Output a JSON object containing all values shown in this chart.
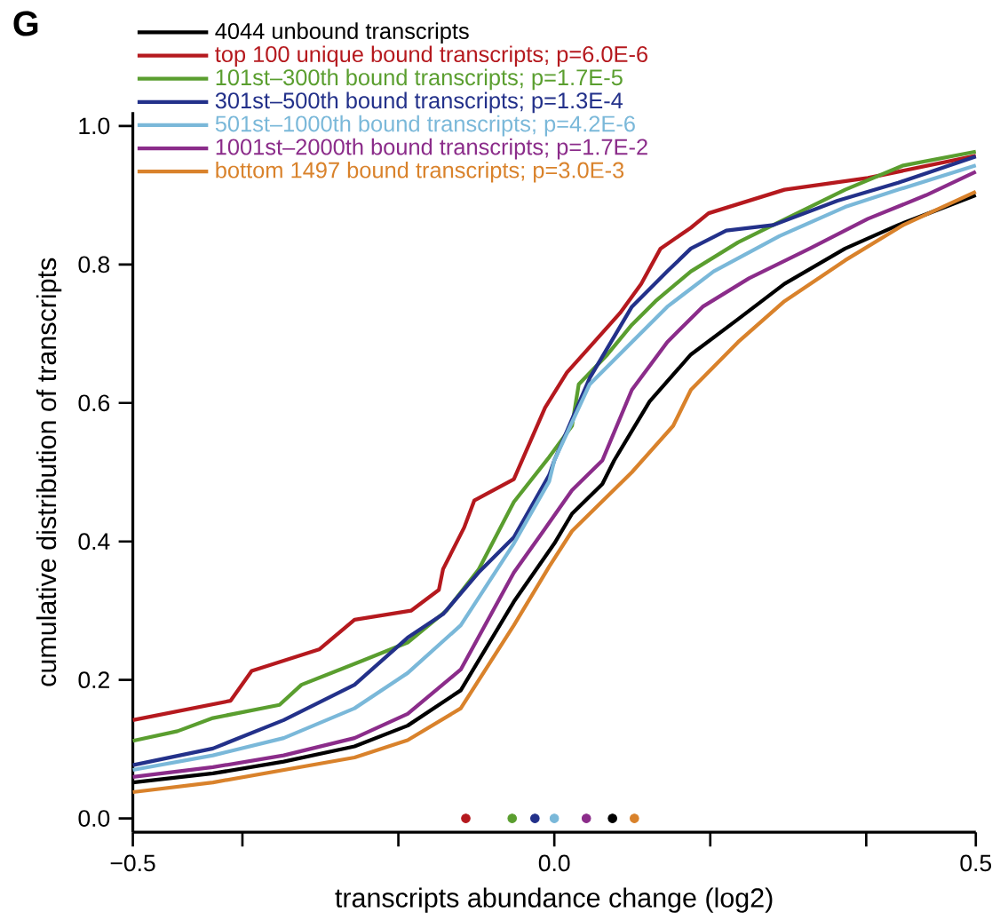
{
  "chart_data": {
    "type": "line",
    "xlabel": "transcripts abundance change (log2)",
    "ylabel": "cumulative distribution of transcripts",
    "annotations": [
      "G"
    ],
    "xlim": [
      -0.5,
      0.5
    ],
    "ylim": [
      -0.02,
      1.02
    ],
    "xticks": [
      {
        "value": -0.5,
        "label": "−0.5"
      },
      {
        "value": -0.37,
        "label": null
      },
      {
        "value": -0.185,
        "label": null
      },
      {
        "value": 0,
        "label": "0.0"
      },
      {
        "value": 0.185,
        "label": null
      },
      {
        "value": 0.37,
        "label": null
      },
      {
        "value": 0.5,
        "label": "0.5"
      }
    ],
    "yticks": [
      {
        "value": 0,
        "label": "0.0"
      },
      {
        "value": 0.2,
        "label": "0.2"
      },
      {
        "value": 0.4,
        "label": "0.4"
      },
      {
        "value": 0.6,
        "label": "0.6"
      },
      {
        "value": 0.8,
        "label": "0.8"
      },
      {
        "value": 1.0,
        "label": "1.0"
      }
    ],
    "legend": "top left",
    "series": [
      {
        "name": "4044 unbound transcripts",
        "color": "#000000",
        "x": [
          -0.5,
          -0.405,
          -0.321,
          -0.237,
          -0.174,
          -0.111,
          -0.048,
          0.0,
          0.021,
          0.057,
          0.071,
          0.113,
          0.162,
          0.218,
          0.273,
          0.345,
          0.408,
          0.5
        ],
        "values": [
          0.052,
          0.065,
          0.082,
          0.104,
          0.134,
          0.185,
          0.313,
          0.397,
          0.44,
          0.483,
          0.517,
          0.602,
          0.67,
          0.721,
          0.772,
          0.823,
          0.857,
          0.9
        ]
      },
      {
        "name": "top 100 unique bound transcripts; p=6.0E-6",
        "color": "#b5191e",
        "x": [
          -0.5,
          -0.384,
          -0.359,
          -0.279,
          -0.237,
          -0.17,
          -0.137,
          -0.132,
          -0.107,
          -0.095,
          -0.048,
          -0.011,
          0.015,
          0.04,
          0.078,
          0.103,
          0.126,
          0.162,
          0.183,
          0.273,
          0.372,
          0.5
        ],
        "values": [
          0.142,
          0.17,
          0.213,
          0.244,
          0.287,
          0.3,
          0.33,
          0.36,
          0.42,
          0.459,
          0.49,
          0.593,
          0.644,
          0.678,
          0.73,
          0.772,
          0.823,
          0.853,
          0.874,
          0.908,
          0.925,
          0.957
        ]
      },
      {
        "name": "101st–300th bound transcripts; p=1.7E-5",
        "color": "#5a9e2f",
        "x": [
          -0.5,
          -0.447,
          -0.405,
          -0.326,
          -0.3,
          -0.227,
          -0.174,
          -0.128,
          -0.09,
          -0.048,
          -0.006,
          0.021,
          0.029,
          0.063,
          0.092,
          0.12,
          0.162,
          0.218,
          0.288,
          0.345,
          0.414,
          0.5
        ],
        "values": [
          0.112,
          0.126,
          0.145,
          0.164,
          0.193,
          0.228,
          0.254,
          0.3,
          0.359,
          0.457,
          0.522,
          0.567,
          0.627,
          0.67,
          0.713,
          0.747,
          0.79,
          0.832,
          0.874,
          0.908,
          0.943,
          0.963
        ]
      },
      {
        "name": "301st–500th bound transcripts; p=1.3E-4",
        "color": "#23318a",
        "x": [
          -0.5,
          -0.405,
          -0.321,
          -0.237,
          -0.174,
          -0.132,
          -0.09,
          -0.048,
          -0.006,
          0.0,
          0.042,
          0.092,
          0.134,
          0.162,
          0.204,
          0.26,
          0.336,
          0.408,
          0.5
        ],
        "values": [
          0.077,
          0.101,
          0.142,
          0.193,
          0.261,
          0.295,
          0.355,
          0.406,
          0.496,
          0.517,
          0.636,
          0.739,
          0.79,
          0.823,
          0.849,
          0.857,
          0.892,
          0.918,
          0.956
        ]
      },
      {
        "name": "501st–1000th bound transcripts; p=4.2E-6",
        "color": "#7ab8d9",
        "x": [
          -0.5,
          -0.405,
          -0.321,
          -0.237,
          -0.174,
          -0.111,
          -0.048,
          -0.006,
          0.0,
          0.042,
          0.092,
          0.134,
          0.189,
          0.267,
          0.345,
          0.408,
          0.5
        ],
        "values": [
          0.07,
          0.091,
          0.116,
          0.159,
          0.21,
          0.279,
          0.397,
          0.487,
          0.517,
          0.627,
          0.688,
          0.739,
          0.79,
          0.841,
          0.883,
          0.908,
          0.943
        ]
      },
      {
        "name": "1001st–2000th bound transcripts; p=1.7E-2",
        "color": "#8b2c8a",
        "x": [
          -0.5,
          -0.405,
          -0.321,
          -0.237,
          -0.174,
          -0.111,
          -0.048,
          -0.013,
          0.021,
          0.057,
          0.092,
          0.134,
          0.176,
          0.231,
          0.303,
          0.372,
          0.441,
          0.5
        ],
        "values": [
          0.06,
          0.074,
          0.091,
          0.116,
          0.151,
          0.215,
          0.355,
          0.415,
          0.474,
          0.517,
          0.619,
          0.688,
          0.739,
          0.78,
          0.823,
          0.866,
          0.9,
          0.934
        ]
      },
      {
        "name": "bottom 1497 bound transcripts; p=3.0E-3",
        "color": "#d9822b",
        "x": [
          -0.5,
          -0.405,
          -0.321,
          -0.237,
          -0.174,
          -0.111,
          -0.048,
          -0.006,
          0.021,
          0.092,
          0.141,
          0.162,
          0.218,
          0.273,
          0.345,
          0.414,
          0.5
        ],
        "values": [
          0.038,
          0.052,
          0.07,
          0.088,
          0.113,
          0.159,
          0.279,
          0.364,
          0.415,
          0.5,
          0.567,
          0.619,
          0.688,
          0.747,
          0.806,
          0.857,
          0.905
        ]
      },
      {
        "type": "scatter",
        "marker": "circle",
        "x": [
          -0.105,
          -0.05,
          -0.023,
          0.0,
          0.038,
          0.069,
          0.095
        ],
        "values": [
          0,
          0,
          0,
          0,
          0,
          0,
          0
        ],
        "colors": [
          "#b5191e",
          "#5a9e2f",
          "#23318a",
          "#7ab8d9",
          "#8b2c8a",
          "#000000",
          "#d9822b"
        ]
      }
    ]
  }
}
